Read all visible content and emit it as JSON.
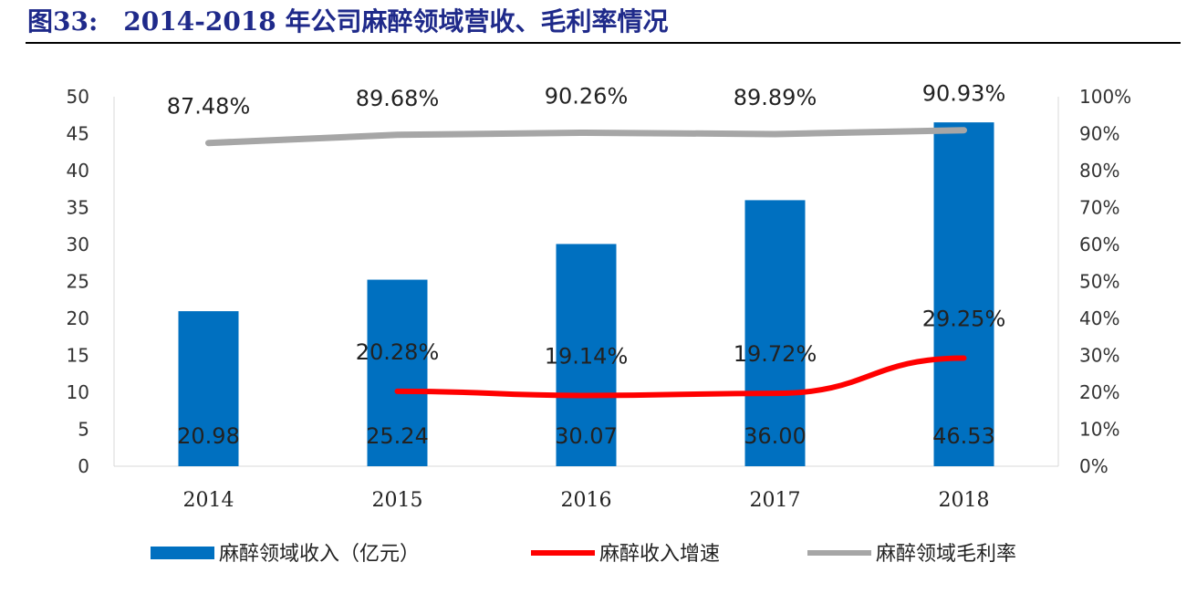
{
  "chart_data": {
    "type": "bar",
    "title": "图33:　2014-2018 年公司麻醉领域营收、毛利率情况",
    "categories": [
      "2014",
      "2015",
      "2016",
      "2017",
      "2018"
    ],
    "series": [
      {
        "name": "麻醉领域收入（亿元）",
        "type": "bar",
        "axis": "left",
        "color": "#0070c0",
        "values": [
          20.98,
          25.24,
          30.07,
          36.0,
          46.53
        ],
        "labels": [
          "20.98",
          "25.24",
          "30.07",
          "36.00",
          "46.53"
        ]
      },
      {
        "name": "麻醉收入增速",
        "type": "line",
        "axis": "right",
        "color": "#ff0000",
        "values": [
          null,
          20.28,
          19.14,
          19.72,
          29.25
        ],
        "labels": [
          "",
          "20.28%",
          "19.14%",
          "19.72%",
          "29.25%"
        ]
      },
      {
        "name": "麻醉领域毛利率",
        "type": "line",
        "axis": "right",
        "color": "#a6a6a6",
        "values": [
          87.48,
          89.68,
          90.26,
          89.89,
          90.93
        ],
        "labels": [
          "87.48%",
          "89.68%",
          "90.26%",
          "89.89%",
          "90.93%"
        ]
      }
    ],
    "left_axis": {
      "ylim": [
        0,
        50
      ],
      "ticks": [
        "0",
        "5",
        "10",
        "15",
        "20",
        "25",
        "30",
        "35",
        "40",
        "45",
        "50"
      ]
    },
    "right_axis": {
      "ylim": [
        0,
        100
      ],
      "ticks": [
        "0%",
        "10%",
        "20%",
        "30%",
        "40%",
        "50%",
        "60%",
        "70%",
        "80%",
        "90%",
        "100%"
      ]
    },
    "legend": "bottom",
    "grid": false
  }
}
